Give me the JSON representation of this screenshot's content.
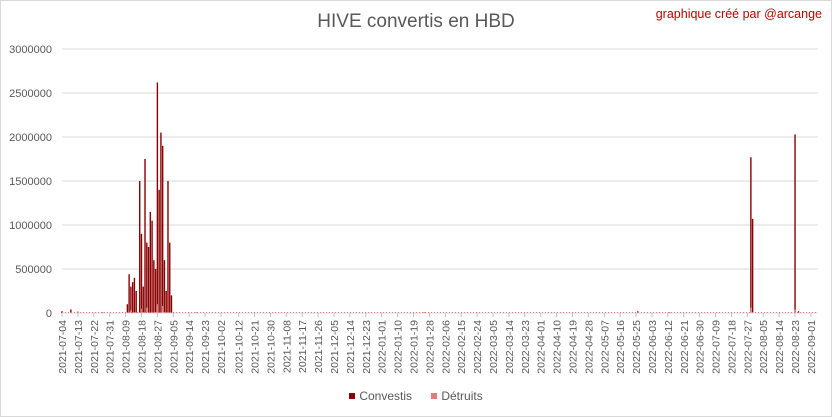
{
  "title": "HIVE convertis en HBD",
  "credit": "graphique créé par @arcange",
  "colors": {
    "convestis": "#8b0000",
    "detruits": "#e07c7c",
    "grid": "#d9d9d9",
    "text": "#595959"
  },
  "chart_data": {
    "type": "bar",
    "title": "HIVE convertis en HBD",
    "xlabel": "",
    "ylabel": "",
    "ylim": [
      0,
      3000000
    ],
    "y_ticks": [
      "0",
      "500000",
      "1000000",
      "1500000",
      "2000000",
      "2500000",
      "3000000"
    ],
    "x_start": "2021-07-04",
    "x_end": "2022-09-05",
    "x_tick_labels": [
      "2021-07-04",
      "2021-07-13",
      "2021-07-22",
      "2021-07-31",
      "2021-08-09",
      "2021-08-18",
      "2021-08-27",
      "2021-09-05",
      "2021-09-14",
      "2021-09-23",
      "2021-10-02",
      "2021-10-12",
      "2021-10-21",
      "2021-10-30",
      "2021-11-08",
      "2021-11-17",
      "2021-11-26",
      "2021-12-05",
      "2021-12-14",
      "2021-12-23",
      "2022-01-01",
      "2022-01-10",
      "2022-01-19",
      "2022-01-28",
      "2022-02-06",
      "2022-02-15",
      "2022-02-24",
      "2022-03-05",
      "2022-03-14",
      "2022-03-23",
      "2022-04-01",
      "2022-04-10",
      "2022-04-19",
      "2022-04-28",
      "2022-05-07",
      "2022-05-16",
      "2022-05-25",
      "2022-06-03",
      "2022-06-12",
      "2022-06-21",
      "2022-06-30",
      "2022-07-09",
      "2022-07-18",
      "2022-07-27",
      "2022-08-05",
      "2022-08-14",
      "2022-08-23",
      "2022-09-01"
    ],
    "legend": [
      "Convestis",
      "Détruits"
    ],
    "legend_position": "bottom",
    "grid": true,
    "series": [
      {
        "name": "Convestis",
        "points": [
          [
            "2021-07-04",
            20000
          ],
          [
            "2021-07-09",
            40000
          ],
          [
            "2021-07-13",
            15000
          ],
          [
            "2021-07-27",
            10000
          ],
          [
            "2021-08-10",
            100000
          ],
          [
            "2021-08-11",
            440000
          ],
          [
            "2021-08-12",
            300000
          ],
          [
            "2021-08-13",
            350000
          ],
          [
            "2021-08-14",
            400000
          ],
          [
            "2021-08-15",
            250000
          ],
          [
            "2021-08-17",
            1500000
          ],
          [
            "2021-08-18",
            900000
          ],
          [
            "2021-08-19",
            300000
          ],
          [
            "2021-08-20",
            1750000
          ],
          [
            "2021-08-21",
            800000
          ],
          [
            "2021-08-22",
            750000
          ],
          [
            "2021-08-23",
            1150000
          ],
          [
            "2021-08-24",
            1050000
          ],
          [
            "2021-08-25",
            600000
          ],
          [
            "2021-08-26",
            500000
          ],
          [
            "2021-08-27",
            2620000
          ],
          [
            "2021-08-28",
            1400000
          ],
          [
            "2021-08-29",
            2050000
          ],
          [
            "2021-08-30",
            1900000
          ],
          [
            "2021-08-31",
            600000
          ],
          [
            "2021-09-01",
            250000
          ],
          [
            "2021-09-02",
            1500000
          ],
          [
            "2021-09-03",
            800000
          ],
          [
            "2021-09-04",
            200000
          ],
          [
            "2021-09-18",
            10000
          ],
          [
            "2022-01-25",
            10000
          ],
          [
            "2022-05-26",
            20000
          ],
          [
            "2022-06-13",
            10000
          ],
          [
            "2022-07-29",
            1770000
          ],
          [
            "2022-07-30",
            1070000
          ],
          [
            "2022-08-23",
            2030000
          ],
          [
            "2022-08-25",
            20000
          ]
        ]
      },
      {
        "name": "Détruits",
        "points": [
          [
            "2021-08-12",
            30000
          ],
          [
            "2021-08-18",
            50000
          ],
          [
            "2021-08-21",
            60000
          ],
          [
            "2021-08-27",
            100000
          ],
          [
            "2021-08-30",
            80000
          ],
          [
            "2022-07-29",
            60000
          ],
          [
            "2022-08-23",
            40000
          ]
        ]
      }
    ]
  }
}
